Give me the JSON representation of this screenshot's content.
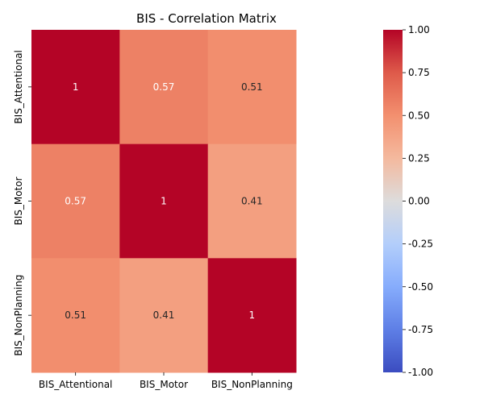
{
  "chart_data": {
    "type": "heatmap",
    "title": "BIS - Correlation Matrix",
    "x_categories": [
      "BIS_Attentional",
      "BIS_Motor",
      "BIS_NonPlanning"
    ],
    "y_categories": [
      "BIS_Attentional",
      "BIS_Motor",
      "BIS_NonPlanning"
    ],
    "values": [
      [
        1,
        0.57,
        0.51
      ],
      [
        0.57,
        1,
        0.41
      ],
      [
        0.51,
        0.41,
        1
      ]
    ],
    "value_labels": [
      [
        "1",
        "0.57",
        "0.51"
      ],
      [
        "0.57",
        "1",
        "0.41"
      ],
      [
        "0.51",
        "0.41",
        "1"
      ]
    ],
    "colormap": "coolwarm",
    "vmin": -1,
    "vmax": 1,
    "colorbar_ticks": [
      "-1.00",
      "-0.75",
      "-0.50",
      "-0.25",
      "0.00",
      "0.25",
      "0.50",
      "0.75",
      "1.00"
    ],
    "colorbar_tick_values": [
      -1,
      -0.75,
      -0.5,
      -0.25,
      0,
      0.25,
      0.5,
      0.75,
      1
    ],
    "colorbar_position": "right",
    "grid": false
  }
}
